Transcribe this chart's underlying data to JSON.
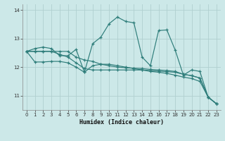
{
  "bg_color": "#cce8e8",
  "grid_color": "#b0d0d0",
  "line_color": "#2e7d7a",
  "xlabel": "Humidex (Indice chaleur)",
  "ylim": [
    10.5,
    14.2
  ],
  "xlim": [
    -0.5,
    23.5
  ],
  "yticks": [
    11,
    12,
    13,
    14
  ],
  "xticks": [
    0,
    1,
    2,
    3,
    4,
    5,
    6,
    7,
    8,
    9,
    10,
    11,
    12,
    13,
    14,
    15,
    16,
    17,
    18,
    19,
    20,
    21,
    22,
    23
  ],
  "series1": [
    12.55,
    12.65,
    12.7,
    12.65,
    12.4,
    12.4,
    12.62,
    11.82,
    12.82,
    13.05,
    13.52,
    13.75,
    13.6,
    13.55,
    12.35,
    12.05,
    13.28,
    13.3,
    12.6,
    11.72,
    11.9,
    11.85,
    10.95,
    10.72
  ],
  "series2": [
    12.55,
    12.18,
    12.18,
    12.2,
    12.2,
    12.15,
    12.0,
    11.82,
    12.05,
    12.1,
    12.1,
    12.05,
    12.0,
    11.95,
    11.9,
    11.85,
    11.82,
    11.78,
    11.72,
    11.65,
    11.6,
    11.5,
    10.95,
    10.72
  ],
  "series3": [
    12.55,
    12.55,
    12.55,
    12.55,
    12.45,
    12.35,
    12.15,
    11.95,
    11.9,
    11.9,
    11.9,
    11.9,
    11.9,
    11.9,
    11.9,
    11.88,
    11.86,
    11.84,
    11.82,
    11.75,
    11.7,
    11.62,
    10.95,
    10.72
  ],
  "series4": [
    12.55,
    12.55,
    12.55,
    12.55,
    12.55,
    12.55,
    12.35,
    12.25,
    12.2,
    12.1,
    12.05,
    12.0,
    11.98,
    11.96,
    11.95,
    11.92,
    11.9,
    11.88,
    11.85,
    11.75,
    11.7,
    11.62,
    10.95,
    10.72
  ]
}
